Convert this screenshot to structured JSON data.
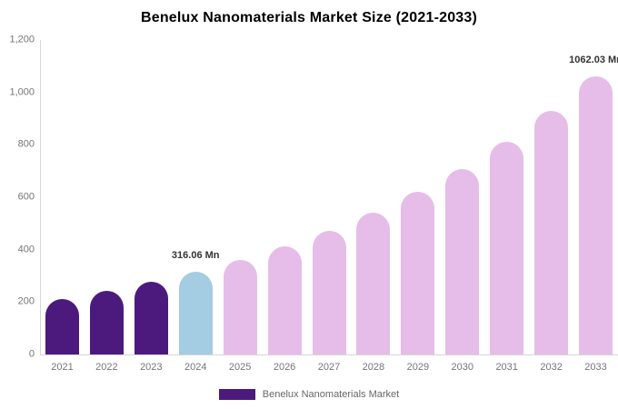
{
  "title": "Benelux Nanomaterials Market Size (2021-2033)",
  "legend": {
    "label": "Benelux Nanomaterials Market",
    "swatch_color": "#4C1A7D"
  },
  "colors": {
    "bar_historical": "#4C1A7D",
    "bar_current_year": "#A4CCE3",
    "bar_forecast": "#E6BDE8",
    "axis_line": "#D6D6D6",
    "axis_text": "#757575",
    "data_label_text": "#333333",
    "legend_text": "#666666",
    "title_text": "#000000",
    "background": "#FFFFFF"
  },
  "chart_data": {
    "type": "bar",
    "title": "Benelux Nanomaterials Market Size (2021-2033)",
    "categories": [
      "2021",
      "2022",
      "2023",
      "2024",
      "2025",
      "2026",
      "2027",
      "2028",
      "2029",
      "2030",
      "2031",
      "2032",
      "2033"
    ],
    "values": [
      211,
      242,
      276,
      316.06,
      362,
      414,
      473,
      542,
      620,
      709,
      812,
      929,
      1062.03
    ],
    "unit": "Mn",
    "bar_colors": [
      "#4C1A7D",
      "#4C1A7D",
      "#4C1A7D",
      "#A4CCE3",
      "#E6BDE8",
      "#E6BDE8",
      "#E6BDE8",
      "#E6BDE8",
      "#E6BDE8",
      "#E6BDE8",
      "#E6BDE8",
      "#E6BDE8",
      "#E6BDE8"
    ],
    "data_labels": [
      {
        "category": "2024",
        "text": "316.06 Mn"
      },
      {
        "category": "2033",
        "text": "1062.03 Mn"
      }
    ],
    "y_ticks": [
      "1,200",
      "1,000",
      "800",
      "600",
      "400",
      "200",
      "0"
    ],
    "ylim": [
      0,
      1200
    ],
    "xlabel": "",
    "ylabel": "",
    "grid": false,
    "legend_position": "bottom",
    "legend_entries": [
      "Benelux Nanomaterials Market"
    ]
  }
}
